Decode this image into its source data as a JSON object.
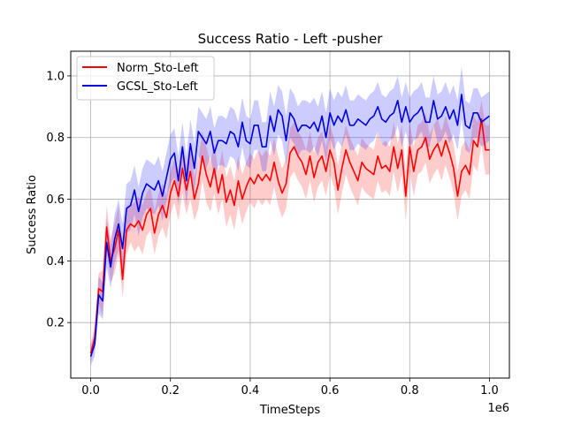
{
  "chart_data": {
    "type": "line",
    "title": "Success Ratio - Left -pusher",
    "xlabel": "TimeSteps",
    "ylabel": "Success Ratio",
    "x_offset_label": "1e6",
    "xlim": [
      -0.05,
      1.05
    ],
    "ylim": [
      0.02,
      1.08
    ],
    "xticks": [
      0.0,
      0.2,
      0.4,
      0.6,
      0.8,
      1.0
    ],
    "xtick_labels": [
      "0.0",
      "0.2",
      "0.4",
      "0.6",
      "0.8",
      "1.0"
    ],
    "yticks": [
      0.2,
      0.4,
      0.6,
      0.8,
      1.0
    ],
    "ytick_labels": [
      "0.2",
      "0.4",
      "0.6",
      "0.8",
      "1.0"
    ],
    "grid": true,
    "legend_position": "top-left",
    "x": [
      0.0,
      0.01,
      0.02,
      0.03,
      0.04,
      0.05,
      0.06,
      0.07,
      0.08,
      0.09,
      0.1,
      0.11,
      0.12,
      0.13,
      0.14,
      0.15,
      0.16,
      0.17,
      0.18,
      0.19,
      0.2,
      0.21,
      0.22,
      0.23,
      0.24,
      0.25,
      0.26,
      0.27,
      0.28,
      0.29,
      0.3,
      0.31,
      0.32,
      0.33,
      0.34,
      0.35,
      0.36,
      0.37,
      0.38,
      0.39,
      0.4,
      0.41,
      0.42,
      0.43,
      0.44,
      0.45,
      0.46,
      0.47,
      0.48,
      0.49,
      0.5,
      0.51,
      0.52,
      0.53,
      0.54,
      0.55,
      0.56,
      0.57,
      0.58,
      0.59,
      0.6,
      0.61,
      0.62,
      0.63,
      0.64,
      0.65,
      0.66,
      0.67,
      0.68,
      0.69,
      0.7,
      0.71,
      0.72,
      0.73,
      0.74,
      0.75,
      0.76,
      0.77,
      0.78,
      0.79,
      0.8,
      0.81,
      0.82,
      0.83,
      0.84,
      0.85,
      0.86,
      0.87,
      0.88,
      0.89,
      0.9,
      0.91,
      0.92,
      0.93,
      0.94,
      0.95,
      0.96,
      0.97,
      0.98,
      0.99,
      1.0
    ],
    "series": [
      {
        "name": "Norm_Sto-Left",
        "color": "#ff0000",
        "band_color": "#ff0000",
        "values": [
          0.1,
          0.15,
          0.31,
          0.3,
          0.51,
          0.4,
          0.44,
          0.5,
          0.34,
          0.5,
          0.52,
          0.51,
          0.53,
          0.5,
          0.55,
          0.57,
          0.49,
          0.55,
          0.58,
          0.54,
          0.62,
          0.66,
          0.61,
          0.7,
          0.63,
          0.69,
          0.6,
          0.65,
          0.74,
          0.68,
          0.64,
          0.7,
          0.62,
          0.68,
          0.59,
          0.63,
          0.58,
          0.66,
          0.6,
          0.64,
          0.67,
          0.65,
          0.68,
          0.66,
          0.68,
          0.66,
          0.72,
          0.66,
          0.62,
          0.65,
          0.75,
          0.77,
          0.74,
          0.72,
          0.68,
          0.74,
          0.67,
          0.72,
          0.74,
          0.69,
          0.76,
          0.72,
          0.63,
          0.7,
          0.76,
          0.72,
          0.69,
          0.66,
          0.72,
          0.7,
          0.69,
          0.68,
          0.74,
          0.7,
          0.71,
          0.69,
          0.77,
          0.7,
          0.76,
          0.61,
          0.77,
          0.69,
          0.76,
          0.77,
          0.8,
          0.73,
          0.76,
          0.78,
          0.74,
          0.79,
          0.75,
          0.7,
          0.61,
          0.69,
          0.71,
          0.68,
          0.79,
          0.77,
          0.86,
          0.76,
          0.76
        ],
        "lower": [
          0.07,
          0.12,
          0.26,
          0.22,
          0.44,
          0.33,
          0.36,
          0.42,
          0.28,
          0.42,
          0.46,
          0.43,
          0.45,
          0.42,
          0.48,
          0.5,
          0.42,
          0.48,
          0.51,
          0.47,
          0.55,
          0.59,
          0.53,
          0.62,
          0.55,
          0.6,
          0.53,
          0.57,
          0.66,
          0.59,
          0.56,
          0.62,
          0.55,
          0.6,
          0.51,
          0.55,
          0.5,
          0.58,
          0.52,
          0.56,
          0.59,
          0.57,
          0.6,
          0.58,
          0.6,
          0.58,
          0.64,
          0.58,
          0.54,
          0.57,
          0.67,
          0.69,
          0.66,
          0.64,
          0.6,
          0.66,
          0.59,
          0.64,
          0.66,
          0.61,
          0.68,
          0.64,
          0.55,
          0.62,
          0.68,
          0.64,
          0.61,
          0.58,
          0.64,
          0.62,
          0.61,
          0.6,
          0.66,
          0.62,
          0.63,
          0.61,
          0.69,
          0.62,
          0.68,
          0.53,
          0.69,
          0.61,
          0.68,
          0.69,
          0.72,
          0.65,
          0.68,
          0.7,
          0.66,
          0.71,
          0.67,
          0.62,
          0.53,
          0.61,
          0.63,
          0.6,
          0.71,
          0.69,
          0.78,
          0.68,
          0.68
        ],
        "upper": [
          0.13,
          0.19,
          0.36,
          0.37,
          0.58,
          0.47,
          0.52,
          0.58,
          0.42,
          0.58,
          0.58,
          0.59,
          0.61,
          0.58,
          0.62,
          0.64,
          0.56,
          0.62,
          0.65,
          0.61,
          0.69,
          0.73,
          0.69,
          0.78,
          0.71,
          0.78,
          0.67,
          0.73,
          0.82,
          0.77,
          0.72,
          0.78,
          0.69,
          0.76,
          0.67,
          0.71,
          0.66,
          0.74,
          0.68,
          0.72,
          0.75,
          0.73,
          0.76,
          0.74,
          0.76,
          0.74,
          0.8,
          0.74,
          0.7,
          0.73,
          0.83,
          0.85,
          0.82,
          0.8,
          0.76,
          0.82,
          0.75,
          0.8,
          0.82,
          0.77,
          0.84,
          0.8,
          0.71,
          0.78,
          0.84,
          0.8,
          0.77,
          0.74,
          0.8,
          0.78,
          0.77,
          0.76,
          0.82,
          0.78,
          0.79,
          0.77,
          0.85,
          0.78,
          0.84,
          0.69,
          0.85,
          0.77,
          0.84,
          0.85,
          0.88,
          0.81,
          0.84,
          0.86,
          0.82,
          0.87,
          0.83,
          0.78,
          0.69,
          0.77,
          0.79,
          0.76,
          0.87,
          0.85,
          0.92,
          0.84,
          0.84
        ]
      },
      {
        "name": "GCSL_Sto-Left",
        "color": "#0000dd",
        "band_color": "#0000ff",
        "values": [
          0.09,
          0.13,
          0.29,
          0.27,
          0.46,
          0.38,
          0.47,
          0.52,
          0.44,
          0.57,
          0.58,
          0.63,
          0.56,
          0.62,
          0.65,
          0.64,
          0.63,
          0.66,
          0.61,
          0.67,
          0.73,
          0.75,
          0.66,
          0.77,
          0.66,
          0.78,
          0.7,
          0.82,
          0.8,
          0.78,
          0.82,
          0.75,
          0.79,
          0.79,
          0.78,
          0.82,
          0.81,
          0.77,
          0.85,
          0.79,
          0.78,
          0.84,
          0.84,
          0.77,
          0.77,
          0.87,
          0.82,
          0.89,
          0.87,
          0.79,
          0.88,
          0.86,
          0.82,
          0.84,
          0.84,
          0.83,
          0.85,
          0.82,
          0.87,
          0.8,
          0.88,
          0.84,
          0.87,
          0.85,
          0.89,
          0.84,
          0.84,
          0.86,
          0.85,
          0.84,
          0.86,
          0.87,
          0.9,
          0.86,
          0.85,
          0.87,
          0.88,
          0.92,
          0.85,
          0.9,
          0.85,
          0.87,
          0.88,
          0.9,
          0.85,
          0.85,
          0.92,
          0.86,
          0.87,
          0.9,
          0.86,
          0.89,
          0.84,
          0.94,
          0.84,
          0.83,
          0.88,
          0.88,
          0.85,
          0.86,
          0.87
        ],
        "lower": [
          0.06,
          0.09,
          0.23,
          0.21,
          0.38,
          0.31,
          0.39,
          0.44,
          0.36,
          0.49,
          0.5,
          0.55,
          0.48,
          0.54,
          0.57,
          0.56,
          0.55,
          0.58,
          0.53,
          0.59,
          0.65,
          0.67,
          0.58,
          0.69,
          0.58,
          0.7,
          0.62,
          0.74,
          0.72,
          0.7,
          0.74,
          0.67,
          0.71,
          0.71,
          0.7,
          0.74,
          0.73,
          0.69,
          0.77,
          0.71,
          0.7,
          0.76,
          0.76,
          0.69,
          0.69,
          0.79,
          0.74,
          0.81,
          0.79,
          0.71,
          0.8,
          0.78,
          0.74,
          0.76,
          0.76,
          0.75,
          0.77,
          0.74,
          0.79,
          0.72,
          0.8,
          0.76,
          0.79,
          0.77,
          0.81,
          0.76,
          0.76,
          0.78,
          0.77,
          0.76,
          0.78,
          0.79,
          0.82,
          0.78,
          0.77,
          0.79,
          0.8,
          0.84,
          0.77,
          0.82,
          0.77,
          0.79,
          0.8,
          0.82,
          0.77,
          0.77,
          0.84,
          0.78,
          0.79,
          0.82,
          0.78,
          0.81,
          0.76,
          0.86,
          0.76,
          0.75,
          0.8,
          0.8,
          0.77,
          0.78,
          0.79
        ],
        "upper": [
          0.12,
          0.17,
          0.35,
          0.33,
          0.54,
          0.45,
          0.55,
          0.6,
          0.52,
          0.65,
          0.66,
          0.71,
          0.64,
          0.7,
          0.73,
          0.72,
          0.71,
          0.74,
          0.69,
          0.75,
          0.81,
          0.83,
          0.74,
          0.85,
          0.74,
          0.86,
          0.78,
          0.9,
          0.88,
          0.86,
          0.9,
          0.83,
          0.87,
          0.87,
          0.86,
          0.9,
          0.89,
          0.85,
          0.93,
          0.87,
          0.86,
          0.92,
          0.92,
          0.85,
          0.85,
          0.95,
          0.9,
          0.97,
          0.95,
          0.87,
          0.96,
          0.94,
          0.9,
          0.92,
          0.92,
          0.91,
          0.93,
          0.9,
          0.95,
          0.88,
          0.96,
          0.92,
          0.95,
          0.93,
          0.97,
          0.92,
          0.92,
          0.94,
          0.93,
          0.92,
          0.94,
          0.95,
          0.98,
          0.94,
          0.93,
          0.95,
          0.96,
          1.0,
          0.93,
          0.98,
          0.93,
          0.95,
          0.96,
          0.98,
          0.93,
          0.93,
          1.0,
          0.94,
          0.95,
          0.98,
          0.94,
          0.97,
          0.92,
          1.03,
          0.92,
          0.91,
          0.96,
          0.96,
          0.93,
          0.94,
          0.95
        ]
      }
    ]
  }
}
